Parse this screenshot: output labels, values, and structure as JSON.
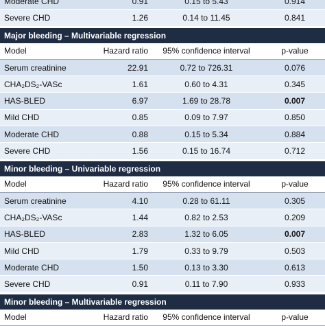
{
  "table": {
    "sections": [
      {
        "rows": [
          {
            "cells": [
              "Moderate CHD",
              "0.91",
              "0.15 to 5.43",
              "0.914"
            ]
          },
          {
            "cells": [
              "Severe CHD",
              "1.26",
              "0.14 to 11.45",
              "0.841"
            ]
          }
        ]
      },
      {
        "title": "Major bleeding – Multivariable regression",
        "header": [
          "Model",
          "Hazard ratio",
          "95% confidence interval",
          "p-value"
        ],
        "rows": [
          {
            "cells": [
              "Serum creatinine",
              "22.91",
              "0.72 to 726.31",
              "0.076"
            ]
          },
          {
            "cells": [
              "CHA₂DS₂-VASc",
              "1.61",
              "0.60 to 4.31",
              "0.345"
            ]
          },
          {
            "cells": [
              "HAS-BLED",
              "6.97",
              "1.69 to 28.78",
              "0.007"
            ],
            "emphasis": true
          },
          {
            "cells": [
              "Mild CHD",
              "0.85",
              "0.09 to 7.97",
              "0.850"
            ]
          },
          {
            "cells": [
              "Moderate CHD",
              "0.88",
              "0.15 to 5.34",
              "0.884"
            ]
          },
          {
            "cells": [
              "Severe CHD",
              "1.56",
              "0.15 to 16.74",
              "0.712"
            ]
          }
        ]
      },
      {
        "title": "Minor bleeding – Univariable regression",
        "header": [
          "Model",
          "Hazard ratio",
          "95% confidence interval",
          "p-value"
        ],
        "rows": [
          {
            "cells": [
              "Serum creatinine",
              "4.10",
              "0.28 to 61.11",
              "0.305"
            ]
          },
          {
            "cells": [
              "CHA₂DS₂-VASc",
              "1.44",
              "0.82 to 2.53",
              "0.209"
            ]
          },
          {
            "cells": [
              "HAS-BLED",
              "2.83",
              "1.32 to 6.05",
              "0.007"
            ],
            "emphasis": true
          },
          {
            "cells": [
              "Mild CHD",
              "1.79",
              "0.33 to 9.79",
              "0.503"
            ]
          },
          {
            "cells": [
              "Moderate CHD",
              "1.50",
              "0.13 to 3.30",
              "0.613"
            ]
          },
          {
            "cells": [
              "Severe CHD",
              "0.91",
              "0.11 to 7.90",
              "0.933"
            ]
          }
        ]
      },
      {
        "title": "Minor bleeding – Multivariable regression",
        "header": [
          "Model",
          "Hazard ratio",
          "95% confidence interval",
          "p-value"
        ],
        "rows": []
      }
    ]
  }
}
